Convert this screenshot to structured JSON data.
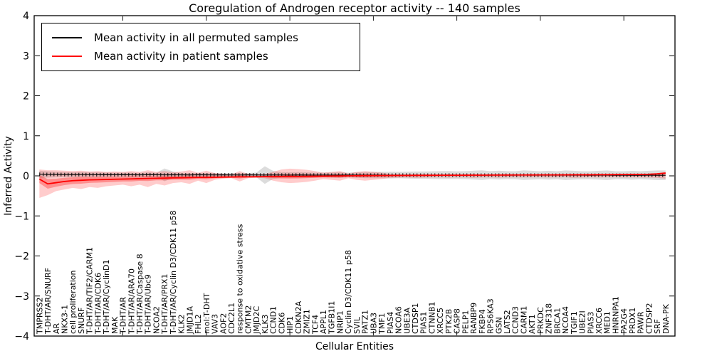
{
  "chart_data": {
    "type": "line",
    "title": "Coregulation of Androgen receptor activity -- 140 samples",
    "xlabel": "Cellular Entities",
    "ylabel": "Inferred Activity",
    "ylim": [
      -4,
      4
    ],
    "grid": false,
    "legend_position": "upper left",
    "yticks": [
      {
        "value": -4,
        "label": "−4"
      },
      {
        "value": -3,
        "label": "−3"
      },
      {
        "value": -2,
        "label": "−2"
      },
      {
        "value": -1,
        "label": "−1"
      },
      {
        "value": 0,
        "label": "0"
      },
      {
        "value": 1,
        "label": "1"
      },
      {
        "value": 2,
        "label": "2"
      },
      {
        "value": 3,
        "label": "3"
      },
      {
        "value": 4,
        "label": "4"
      }
    ],
    "xticks_sparse_indices": [
      10,
      20,
      30,
      40,
      50,
      60,
      70
    ],
    "categories": [
      "TMPRSS2",
      "T-DHT/AR/SNURF",
      "AR",
      "NKX3-1",
      "cell proliferation",
      "SNURF",
      "T-DHT/AR/TIF2/CARM1",
      "T-DHT/AR/CDK6",
      "T-DHT/AR/CyclinD1",
      "MAK",
      "T-DHT/AR",
      "T-DHT/AR/ARA70",
      "T-DHT/AR/Caspase 8",
      "T-DHT/AR/Ubc9",
      "NCOA2",
      "T-DHT/AR/PRX1",
      "T-DHT/AR/Cyclin D3/CDK11 p58",
      "KLK2",
      "JMJD1A",
      "FHL2",
      "mol:T-DHT",
      "VAV3",
      "AOF2",
      "CDC2L1",
      "response to oxidative stress",
      "CMTM2",
      "JMJD2C",
      "KLK3",
      "CCND1",
      "CDK6",
      "HIP1",
      "CDKN2A",
      "ZMIZ1",
      "TCF4",
      "APPL1",
      "TGFB1I1",
      "NRIP1",
      "Cyclin D3/CDK11 p58",
      "SVIL",
      "PATZ1",
      "UBA3",
      "TMF1",
      "PIAS4",
      "NCOA6",
      "UBE3A",
      "CTDSP1",
      "PIAS1",
      "CTNNB1",
      "XRCC5",
      "PTK2B",
      "CASP8",
      "PELP1",
      "RANBP9",
      "FKBP4",
      "RPS6KA3",
      "GSN",
      "LATS2",
      "CCND3",
      "CARM1",
      "AKT1",
      "PRKDC",
      "ZNF318",
      "BRCA1",
      "NCOA4",
      "TGIF1",
      "UBE2I",
      "PIAS3",
      "XRCC6",
      "MED1",
      "HNRNPA1",
      "PA2G4",
      "PRDX1",
      "PAWR",
      "CTDSP2",
      "SRF",
      "DNA-PK"
    ],
    "series": [
      {
        "name": "Mean activity in all permuted samples",
        "color": "#000000",
        "values": [
          0.04,
          0.035,
          0.035,
          0.032,
          0.03,
          0.032,
          0.03,
          0.028,
          0.03,
          0.027,
          0.03,
          0.028,
          0.026,
          0.03,
          0.027,
          0.025,
          0.028,
          0.026,
          0.024,
          0.027,
          0.025,
          0.023,
          0.026,
          0.024,
          0.022,
          0.025,
          0.023,
          0.021,
          0.024,
          0.022,
          0.02,
          0.023,
          0.021,
          0.02,
          0.022,
          0.02,
          0.019,
          0.021,
          0.02,
          0.018,
          0.02,
          0.019,
          0.018,
          0.02,
          0.019,
          0.018,
          0.019,
          0.018,
          0.017,
          0.019,
          0.018,
          0.017,
          0.018,
          0.017,
          0.017,
          0.018,
          0.017,
          0.016,
          0.018,
          0.017,
          0.016,
          0.017,
          0.016,
          0.016,
          0.017,
          0.016,
          0.015,
          0.017,
          0.016,
          0.015,
          0.016,
          0.015,
          0.015,
          0.016,
          0.015,
          0.015
        ]
      },
      {
        "name": "Mean activity in patient samples",
        "color": "#ff0000",
        "values": [
          -0.08,
          -0.2,
          -0.17,
          -0.14,
          -0.12,
          -0.11,
          -0.1,
          -0.095,
          -0.09,
          -0.085,
          -0.08,
          -0.075,
          -0.07,
          -0.065,
          -0.06,
          -0.055,
          -0.05,
          -0.048,
          -0.045,
          -0.04,
          -0.04,
          -0.035,
          -0.03,
          -0.028,
          -0.025,
          -0.025,
          -0.022,
          -0.02,
          -0.02,
          -0.015,
          -0.012,
          -0.015,
          -0.012,
          -0.01,
          -0.008,
          -0.005,
          -0.003,
          0,
          0.002,
          0.004,
          0.005,
          0.006,
          0.008,
          0.01,
          0.01,
          0.012,
          0.012,
          0.014,
          0.015,
          0.015,
          0.016,
          0.017,
          0.018,
          0.018,
          0.02,
          0.02,
          0.021,
          0.022,
          0.022,
          0.023,
          0.024,
          0.025,
          0.025,
          0.026,
          0.027,
          0.028,
          0.028,
          0.03,
          0.03,
          0.032,
          0.033,
          0.035,
          0.037,
          0.04,
          0.05,
          0.07
        ]
      }
    ],
    "bands": [
      {
        "name": "permuted-samples-range",
        "color": "rgba(128,128,128,0.28)",
        "center_series": 0,
        "half_widths": [
          0.09,
          0.08,
          0.07,
          0.065,
          0.06,
          0.065,
          0.06,
          0.06,
          0.055,
          0.055,
          0.05,
          0.055,
          0.05,
          0.06,
          0.05,
          0.16,
          0.08,
          0.05,
          0.05,
          0.045,
          0.05,
          0.045,
          0.04,
          0.045,
          0.05,
          0.045,
          0.06,
          0.22,
          0.1,
          0.07,
          0.07,
          0.07,
          0.065,
          0.06,
          0.06,
          0.065,
          0.07,
          0.06,
          0.07,
          0.075,
          0.08,
          0.08,
          0.085,
          0.08,
          0.085,
          0.09,
          0.09,
          0.095,
          0.1,
          0.1,
          0.095,
          0.1,
          0.11,
          0.12,
          0.1,
          0.11,
          0.1,
          0.1,
          0.12,
          0.11,
          0.1,
          0.11,
          0.1,
          0.12,
          0.11,
          0.1,
          0.1,
          0.11,
          0.12,
          0.1,
          0.1,
          0.11,
          0.1,
          0.11,
          0.12,
          0.12
        ]
      },
      {
        "name": "patient-samples-range-outer",
        "color": "rgba(255,0,0,0.2)",
        "upper": [
          0.16,
          0.14,
          0.14,
          0.13,
          0.12,
          0.13,
          0.11,
          0.12,
          0.1,
          0.11,
          0.1,
          0.12,
          0.1,
          0.14,
          0.1,
          0.12,
          0.09,
          0.11,
          0.14,
          0.08,
          0.13,
          0.07,
          0.05,
          0.04,
          0.12,
          0.05,
          0.04,
          0.05,
          0.1,
          0.16,
          0.18,
          0.17,
          0.15,
          0.12,
          0.08,
          0.1,
          0.12,
          0.06,
          0.1,
          0.12,
          0.1,
          0.08,
          0.05,
          0.04,
          0.04,
          0.05,
          0.045,
          0.04,
          0.04,
          0.045,
          0.04,
          0.04,
          0.05,
          0.04,
          0.04,
          0.045,
          0.04,
          0.038,
          0.04,
          0.038,
          0.036,
          0.04,
          0.038,
          0.036,
          0.05,
          0.04,
          0.036,
          0.04,
          0.038,
          0.036,
          0.04,
          0.038,
          0.04,
          0.042,
          0.05,
          0.07
        ],
        "lower": [
          -0.55,
          -0.48,
          -0.38,
          -0.34,
          -0.3,
          -0.33,
          -0.28,
          -0.3,
          -0.26,
          -0.24,
          -0.22,
          -0.26,
          -0.22,
          -0.28,
          -0.2,
          -0.24,
          -0.18,
          -0.16,
          -0.2,
          -0.12,
          -0.18,
          -0.1,
          -0.07,
          -0.06,
          -0.14,
          -0.06,
          -0.05,
          -0.06,
          -0.12,
          -0.16,
          -0.18,
          -0.17,
          -0.15,
          -0.12,
          -0.08,
          -0.1,
          -0.12,
          -0.06,
          -0.1,
          -0.12,
          -0.1,
          -0.08,
          -0.05,
          -0.045,
          -0.04,
          -0.05,
          -0.045,
          -0.04,
          -0.04,
          -0.045,
          -0.04,
          -0.04,
          -0.05,
          -0.04,
          -0.04,
          -0.045,
          -0.04,
          -0.038,
          -0.04,
          -0.038,
          -0.036,
          -0.04,
          -0.038,
          -0.036,
          -0.05,
          -0.04,
          -0.036,
          -0.04,
          -0.038,
          -0.036,
          -0.04,
          -0.038,
          -0.04,
          -0.042,
          -0.05,
          -0.07
        ]
      },
      {
        "name": "patient-samples-range-inner",
        "color": "rgba(255,0,0,0.3)",
        "center_series": 1,
        "half_widths": [
          0.1,
          0.12,
          0.1,
          0.09,
          0.085,
          0.085,
          0.075,
          0.075,
          0.07,
          0.065,
          0.06,
          0.065,
          0.055,
          0.065,
          0.05,
          0.055,
          0.045,
          0.045,
          0.05,
          0.035,
          0.045,
          0.03,
          0.025,
          0.02,
          0.04,
          0.02,
          0.018,
          0.02,
          0.035,
          0.05,
          0.055,
          0.05,
          0.045,
          0.04,
          0.03,
          0.035,
          0.04,
          0.022,
          0.032,
          0.04,
          0.032,
          0.027,
          0.02,
          0.017,
          0.015,
          0.017,
          0.015,
          0.014,
          0.014,
          0.015,
          0.014,
          0.013,
          0.016,
          0.013,
          0.013,
          0.014,
          0.013,
          0.012,
          0.013,
          0.012,
          0.012,
          0.013,
          0.012,
          0.012,
          0.015,
          0.013,
          0.012,
          0.013,
          0.012,
          0.012,
          0.013,
          0.012,
          0.013,
          0.014,
          0.016,
          0.022
        ]
      }
    ]
  }
}
